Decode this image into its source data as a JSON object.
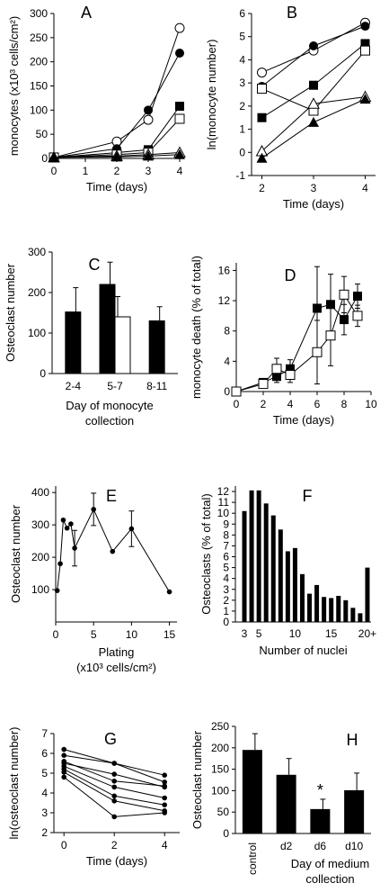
{
  "chart_data": [
    {
      "panel": "A",
      "type": "line",
      "xlabel": "Time (days)",
      "ylabel": "monocytes (x10³ cells/cm²)",
      "xlim": [
        0,
        4
      ],
      "ylim": [
        0,
        300
      ],
      "xticks": [
        "0",
        "1",
        "2",
        "3",
        "4"
      ],
      "yticks": [
        "0",
        "50",
        "100",
        "150",
        "200",
        "250",
        "300"
      ],
      "series": [
        {
          "marker": "circle-open",
          "x": [
            0,
            2,
            3,
            4
          ],
          "y": [
            2,
            35,
            80,
            270
          ]
        },
        {
          "marker": "circle-filled",
          "x": [
            0,
            2,
            3,
            4
          ],
          "y": [
            2,
            20,
            100,
            218
          ]
        },
        {
          "marker": "square-filled",
          "x": [
            0,
            2,
            3,
            4
          ],
          "y": [
            2,
            12,
            18,
            108
          ]
        },
        {
          "marker": "square-open",
          "x": [
            0,
            2,
            3,
            4
          ],
          "y": [
            2,
            8,
            12,
            82
          ]
        },
        {
          "marker": "triangle-open",
          "x": [
            0,
            2,
            3,
            4
          ],
          "y": [
            2,
            5,
            8,
            12
          ]
        },
        {
          "marker": "triangle-filled",
          "x": [
            0,
            2,
            3,
            4
          ],
          "y": [
            2,
            3,
            5,
            8
          ]
        }
      ]
    },
    {
      "panel": "B",
      "type": "line",
      "xlabel": "Time (days)",
      "ylabel": "ln(monocyte number)",
      "xlim": [
        1.8,
        4.2
      ],
      "ylim": [
        -1,
        6
      ],
      "xticks": [
        "2",
        "3",
        "4"
      ],
      "yticks": [
        "-1",
        "0",
        "1",
        "2",
        "3",
        "4",
        "5",
        "6"
      ],
      "series": [
        {
          "marker": "circle-open",
          "x": [
            2,
            3,
            4
          ],
          "y": [
            3.45,
            4.4,
            5.6
          ]
        },
        {
          "marker": "circle-filled",
          "x": [
            2,
            3,
            4
          ],
          "y": [
            2.85,
            4.6,
            5.45
          ]
        },
        {
          "marker": "square-filled",
          "x": [
            2,
            3,
            4
          ],
          "y": [
            1.5,
            2.9,
            4.7
          ]
        },
        {
          "marker": "square-open",
          "x": [
            2,
            3,
            4
          ],
          "y": [
            2.75,
            1.8,
            4.4
          ]
        },
        {
          "marker": "triangle-open",
          "x": [
            2,
            3,
            4
          ],
          "y": [
            0.05,
            2.1,
            2.4
          ]
        },
        {
          "marker": "triangle-filled",
          "x": [
            2,
            3,
            4
          ],
          "y": [
            -0.25,
            1.3,
            2.3
          ]
        }
      ]
    },
    {
      "panel": "C",
      "type": "bar",
      "xlabel": "Day of monocyte collection",
      "ylabel": "Osteoclast number",
      "ylim": [
        0,
        300
      ],
      "yticks": [
        "0",
        "100",
        "200",
        "300"
      ],
      "categories": [
        "2-4",
        "5-7",
        "8-11"
      ],
      "bars": [
        {
          "cat": 0,
          "fill": "filled",
          "value": 152,
          "err": 60
        },
        {
          "cat": 1,
          "fill": "filled",
          "value": 220,
          "err": 55
        },
        {
          "cat": 1,
          "fill": "open",
          "value": 140,
          "err": 50
        },
        {
          "cat": 2,
          "fill": "filled",
          "value": 130,
          "err": 35
        }
      ]
    },
    {
      "panel": "D",
      "type": "line",
      "xlabel": "Time (days)",
      "ylabel": "monocyte death (% of total)",
      "xlim": [
        0,
        10
      ],
      "ylim": [
        0,
        17
      ],
      "xticks": [
        "0",
        "2",
        "4",
        "6",
        "8",
        "10"
      ],
      "yticks": [
        "0",
        "4",
        "8",
        "12",
        "16"
      ],
      "series": [
        {
          "marker": "square-filled",
          "x": [
            0,
            2,
            3,
            4,
            6,
            7,
            8,
            9
          ],
          "y": [
            0,
            1.2,
            2.0,
            3.0,
            11.0,
            11.5,
            9.5,
            12.6
          ],
          "err": [
            0,
            0.4,
            0.8,
            1.2,
            5.5,
            4.0,
            2.0,
            1.6
          ]
        },
        {
          "marker": "square-open",
          "x": [
            0,
            2,
            3,
            4,
            6,
            7,
            8,
            9
          ],
          "y": [
            0,
            1.0,
            3.0,
            2.2,
            5.2,
            7.4,
            12.8,
            10.0
          ],
          "err": [
            0,
            0.4,
            1.4,
            1.0,
            4.2,
            4.0,
            2.4,
            1.4
          ]
        }
      ]
    },
    {
      "panel": "E",
      "type": "line",
      "xlabel": "Plating (x10³ cells/cm²)",
      "ylabel": "Osteoclast number",
      "xlim": [
        0,
        16
      ],
      "ylim": [
        0,
        420
      ],
      "xticks": [
        "0",
        "5",
        "10",
        "15"
      ],
      "yticks": [
        "100",
        "200",
        "300",
        "400"
      ],
      "series": [
        {
          "marker": "dot",
          "x": [
            0.2,
            0.6,
            1.0,
            1.5,
            2.0,
            2.5,
            5,
            7.5,
            10,
            15
          ],
          "y": [
            97,
            180,
            315,
            290,
            303,
            228,
            348,
            218,
            288,
            93
          ],
          "err": [
            0,
            0,
            0,
            0,
            0,
            55,
            50,
            0,
            55,
            0
          ]
        }
      ]
    },
    {
      "panel": "F",
      "type": "bar",
      "xlabel": "Number of nuclei",
      "ylabel": "Osteoclasts (% of total)",
      "ylim": [
        0,
        12.5
      ],
      "yticks": [
        "0",
        "1",
        "2",
        "3",
        "4",
        "5",
        "6",
        "7",
        "8",
        "9",
        "10",
        "11",
        "12"
      ],
      "xticks": [
        "3",
        "5",
        "10",
        "15",
        "20+"
      ],
      "categories": [
        "3",
        "4",
        "5",
        "6",
        "7",
        "8",
        "9",
        "10",
        "11",
        "12",
        "13",
        "14",
        "15",
        "16",
        "17",
        "18",
        "19",
        "20+"
      ],
      "values": [
        10.2,
        12.1,
        12.1,
        10.9,
        9.8,
        8.5,
        6.5,
        6.8,
        4.4,
        2.6,
        3.4,
        2.3,
        2.2,
        2.4,
        2.0,
        1.3,
        0.8,
        5.0
      ]
    },
    {
      "panel": "G",
      "type": "line",
      "xlabel": "Time (days)",
      "ylabel": "ln(osteoclast number)",
      "xlim": [
        -0.4,
        4.6
      ],
      "ylim": [
        2,
        7
      ],
      "xticks": [
        "0",
        "2",
        "4"
      ],
      "yticks": [
        "2",
        "3",
        "4",
        "5",
        "6",
        "7"
      ],
      "series": [
        {
          "marker": "dot",
          "x": [
            0,
            2,
            4
          ],
          "y": [
            6.2,
            5.5,
            4.9
          ]
        },
        {
          "marker": "dot",
          "x": [
            0,
            2,
            4
          ],
          "y": [
            5.9,
            5.5,
            4.55
          ]
        },
        {
          "marker": "dot",
          "x": [
            0,
            2,
            4
          ],
          "y": [
            5.6,
            4.6,
            4.35
          ]
        },
        {
          "marker": "dot",
          "x": [
            0,
            2,
            4
          ],
          "y": [
            5.5,
            4.95,
            4.3
          ]
        },
        {
          "marker": "dot",
          "x": [
            0,
            2,
            4
          ],
          "y": [
            5.35,
            4.3,
            3.75
          ]
        },
        {
          "marker": "dot",
          "x": [
            0,
            2,
            4
          ],
          "y": [
            5.2,
            3.85,
            3.4
          ]
        },
        {
          "marker": "dot",
          "x": [
            0,
            2,
            4
          ],
          "y": [
            5.05,
            3.6,
            3.1
          ]
        },
        {
          "marker": "dot",
          "x": [
            0,
            2,
            4
          ],
          "y": [
            4.8,
            2.8,
            3.0
          ]
        }
      ]
    },
    {
      "panel": "H",
      "type": "bar",
      "xlabel": "Day of medium collection",
      "ylabel": "Osteoclast number",
      "ylim": [
        0,
        250
      ],
      "yticks": [
        "0",
        "50",
        "100",
        "150",
        "200",
        "250"
      ],
      "categories": [
        "control",
        "d2",
        "d6",
        "d10"
      ],
      "values": [
        195,
        137,
        57,
        101
      ],
      "errs": [
        38,
        38,
        23,
        40
      ],
      "annotation": {
        "category": "d6",
        "text": "*"
      }
    }
  ]
}
